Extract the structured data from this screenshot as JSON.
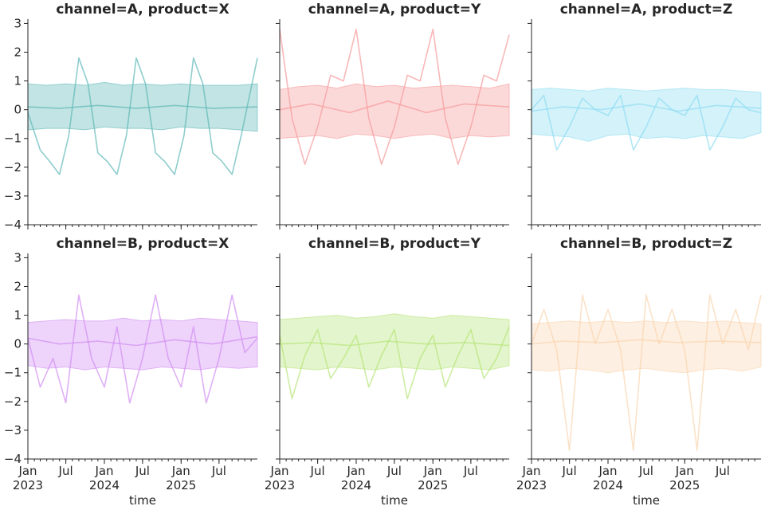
{
  "chart_data": {
    "type": "line",
    "layout": {
      "rows": 2,
      "cols": 3,
      "sharex": true,
      "sharey": true
    },
    "ylim": [
      -4,
      3.15
    ],
    "yticks": [
      3,
      2,
      1,
      0,
      -1,
      -2,
      -3,
      -4
    ],
    "ytick_labels": [
      "3",
      "2",
      "1",
      "0",
      "−1",
      "−2",
      "−3",
      "−4"
    ],
    "xlim": [
      "2023-01-01",
      "2025-12-31"
    ],
    "xticks": [
      {
        "date": "2023-01-01",
        "label": "Jan",
        "label2": "2023"
      },
      {
        "date": "2023-07-01",
        "label": "Jul",
        "label2": ""
      },
      {
        "date": "2024-01-01",
        "label": "Jan",
        "label2": "2024"
      },
      {
        "date": "2024-07-01",
        "label": "Jul",
        "label2": ""
      },
      {
        "date": "2025-01-01",
        "label": "Jan",
        "label2": "2025"
      },
      {
        "date": "2025-07-01",
        "label": "Jul",
        "label2": ""
      }
    ],
    "xlabel": "time",
    "ylabel": "",
    "grid": false,
    "panels": [
      {
        "title": "channel=A, product=X",
        "color": "#5FB8B8",
        "series": [
          {
            "kind": "band",
            "x": [
              "2023-01-01",
              "2023-04-01",
              "2023-07-01",
              "2023-10-01",
              "2024-01-01",
              "2024-04-01",
              "2024-07-01",
              "2024-10-01",
              "2025-01-01",
              "2025-04-01",
              "2025-07-01",
              "2025-10-01",
              "2025-12-31"
            ],
            "upper": [
              0.9,
              0.85,
              0.9,
              0.85,
              0.95,
              0.85,
              0.9,
              0.85,
              0.9,
              0.85,
              0.85,
              0.85,
              0.9
            ],
            "lower": [
              -0.7,
              -0.65,
              -0.65,
              -0.7,
              -0.6,
              -0.65,
              -0.65,
              -0.7,
              -0.6,
              -0.65,
              -0.65,
              -0.7,
              -0.75
            ]
          },
          {
            "kind": "line",
            "x": [
              "2023-01-01",
              "2023-03-01",
              "2023-04-15",
              "2023-06-01",
              "2023-07-15",
              "2023-09-01",
              "2023-10-15",
              "2023-12-01",
              "2024-01-15",
              "2024-03-01",
              "2024-04-15",
              "2024-06-01",
              "2024-07-15",
              "2024-09-01",
              "2024-10-15",
              "2024-12-01",
              "2025-01-15",
              "2025-03-01",
              "2025-04-15",
              "2025-06-01",
              "2025-07-15",
              "2025-09-01",
              "2025-10-15",
              "2025-12-31"
            ],
            "y": [
              -0.1,
              -1.4,
              -1.8,
              -2.25,
              -0.9,
              1.8,
              0.9,
              -1.5,
              -1.8,
              -2.25,
              -0.9,
              1.8,
              0.9,
              -1.5,
              -1.8,
              -2.25,
              -0.9,
              1.8,
              0.9,
              -1.5,
              -1.8,
              -2.25,
              -0.9,
              1.8
            ]
          },
          {
            "kind": "line",
            "x": [
              "2023-01-01",
              "2023-06-01",
              "2023-12-01",
              "2024-06-01",
              "2024-12-01",
              "2025-06-01",
              "2025-12-31"
            ],
            "y": [
              0.1,
              0.05,
              0.15,
              0.05,
              0.15,
              0.05,
              0.1
            ]
          }
        ]
      },
      {
        "title": "channel=A, product=Y",
        "color": "#F79A9A",
        "series": [
          {
            "kind": "band",
            "x": [
              "2023-01-01",
              "2023-04-01",
              "2023-07-01",
              "2023-10-01",
              "2024-01-01",
              "2024-04-01",
              "2024-07-01",
              "2024-10-01",
              "2025-01-01",
              "2025-04-01",
              "2025-07-01",
              "2025-10-01",
              "2025-12-31"
            ],
            "upper": [
              0.7,
              0.8,
              0.85,
              0.75,
              0.9,
              0.8,
              0.85,
              0.75,
              0.8,
              0.85,
              0.8,
              0.75,
              0.9
            ],
            "lower": [
              -1.0,
              -0.95,
              -0.9,
              -1.0,
              -0.85,
              -0.9,
              -1.0,
              -0.9,
              -0.85,
              -1.0,
              -0.9,
              -0.95,
              -0.9
            ]
          },
          {
            "kind": "line",
            "x": [
              "2023-01-01",
              "2023-03-01",
              "2023-05-01",
              "2023-07-01",
              "2023-09-01",
              "2023-11-01",
              "2024-01-01",
              "2024-03-01",
              "2024-05-01",
              "2024-07-01",
              "2024-09-01",
              "2024-11-01",
              "2025-01-01",
              "2025-03-01",
              "2025-05-01",
              "2025-07-01",
              "2025-09-01",
              "2025-11-01",
              "2025-12-31"
            ],
            "y": [
              2.8,
              -0.3,
              -1.9,
              -0.6,
              1.2,
              1.0,
              2.8,
              -0.3,
              -1.9,
              -0.6,
              1.2,
              1.0,
              2.8,
              -0.3,
              -1.9,
              -0.6,
              1.2,
              1.0,
              2.6
            ]
          },
          {
            "kind": "line",
            "x": [
              "2023-01-01",
              "2023-06-01",
              "2023-12-01",
              "2024-06-01",
              "2024-12-01",
              "2025-06-01",
              "2025-12-31"
            ],
            "y": [
              0.0,
              0.2,
              -0.1,
              0.3,
              -0.1,
              0.2,
              0.1
            ]
          }
        ]
      },
      {
        "title": "channel=A, product=Z",
        "color": "#8EDDF2",
        "series": [
          {
            "kind": "band",
            "x": [
              "2023-01-01",
              "2023-04-01",
              "2023-07-01",
              "2023-10-01",
              "2024-01-01",
              "2024-04-01",
              "2024-07-01",
              "2024-10-01",
              "2025-01-01",
              "2025-04-01",
              "2025-07-01",
              "2025-10-01",
              "2025-12-31"
            ],
            "upper": [
              0.7,
              0.75,
              0.7,
              0.65,
              0.75,
              0.7,
              0.65,
              0.7,
              0.75,
              0.7,
              0.7,
              0.65,
              0.6
            ],
            "lower": [
              -0.85,
              -0.9,
              -0.95,
              -1.1,
              -0.9,
              -0.85,
              -1.0,
              -0.95,
              -1.0,
              -0.9,
              -0.95,
              -1.0,
              -0.8
            ]
          },
          {
            "kind": "line",
            "x": [
              "2023-01-01",
              "2023-03-01",
              "2023-05-01",
              "2023-07-01",
              "2023-09-01",
              "2023-11-01",
              "2024-01-01",
              "2024-03-01",
              "2024-05-01",
              "2024-07-01",
              "2024-09-01",
              "2024-11-01",
              "2025-01-01",
              "2025-03-01",
              "2025-05-01",
              "2025-07-01",
              "2025-09-01",
              "2025-11-01",
              "2025-12-31"
            ],
            "y": [
              0.0,
              0.5,
              -1.4,
              -0.6,
              0.4,
              0.0,
              -0.2,
              0.5,
              -1.4,
              -0.6,
              0.4,
              0.0,
              -0.2,
              0.5,
              -1.4,
              -0.6,
              0.4,
              0.0,
              -0.1
            ]
          },
          {
            "kind": "line",
            "x": [
              "2023-01-01",
              "2023-06-01",
              "2023-12-01",
              "2024-06-01",
              "2024-12-01",
              "2025-06-01",
              "2025-12-31"
            ],
            "y": [
              -0.05,
              0.1,
              0.0,
              0.2,
              -0.05,
              0.15,
              0.05
            ]
          }
        ]
      },
      {
        "title": "channel=B, product=X",
        "color": "#D18EF2",
        "series": [
          {
            "kind": "band",
            "x": [
              "2023-01-01",
              "2023-04-01",
              "2023-07-01",
              "2023-10-01",
              "2024-01-01",
              "2024-04-01",
              "2024-07-01",
              "2024-10-01",
              "2025-01-01",
              "2025-04-01",
              "2025-07-01",
              "2025-10-01",
              "2025-12-31"
            ],
            "upper": [
              0.75,
              0.8,
              0.85,
              0.8,
              0.8,
              0.9,
              0.8,
              0.85,
              0.8,
              0.9,
              0.85,
              0.8,
              0.75
            ],
            "lower": [
              -0.75,
              -0.85,
              -0.8,
              -0.9,
              -0.8,
              -0.85,
              -0.9,
              -0.8,
              -0.85,
              -0.9,
              -0.8,
              -0.85,
              -0.8
            ]
          },
          {
            "kind": "line",
            "x": [
              "2023-01-01",
              "2023-03-01",
              "2023-05-01",
              "2023-07-01",
              "2023-09-01",
              "2023-11-01",
              "2024-01-01",
              "2024-03-01",
              "2024-05-01",
              "2024-07-01",
              "2024-09-01",
              "2024-11-01",
              "2025-01-01",
              "2025-03-01",
              "2025-05-01",
              "2025-07-01",
              "2025-09-01",
              "2025-11-01",
              "2025-12-31"
            ],
            "y": [
              0.2,
              -1.5,
              -0.5,
              -2.05,
              1.7,
              -0.5,
              -1.5,
              0.6,
              -2.05,
              -0.5,
              1.7,
              -0.5,
              -1.5,
              0.6,
              -2.05,
              -0.5,
              1.7,
              -0.3,
              0.2
            ]
          },
          {
            "kind": "line",
            "x": [
              "2023-01-01",
              "2023-06-01",
              "2023-12-01",
              "2024-06-01",
              "2024-12-01",
              "2025-06-01",
              "2025-12-31"
            ],
            "y": [
              0.2,
              0.0,
              0.1,
              -0.05,
              0.15,
              0.0,
              0.25
            ]
          }
        ]
      },
      {
        "title": "channel=B, product=Y",
        "color": "#B6E57A",
        "series": [
          {
            "kind": "band",
            "x": [
              "2023-01-01",
              "2023-04-01",
              "2023-07-01",
              "2023-10-01",
              "2024-01-01",
              "2024-04-01",
              "2024-07-01",
              "2024-10-01",
              "2025-01-01",
              "2025-04-01",
              "2025-07-01",
              "2025-10-01",
              "2025-12-31"
            ],
            "upper": [
              0.85,
              0.9,
              0.95,
              1.0,
              0.9,
              0.95,
              1.05,
              0.95,
              0.9,
              1.0,
              0.95,
              0.9,
              0.85
            ],
            "lower": [
              -0.8,
              -0.85,
              -0.9,
              -0.8,
              -0.85,
              -0.9,
              -0.8,
              -0.85,
              -0.9,
              -0.8,
              -0.85,
              -0.9,
              -0.75
            ]
          },
          {
            "kind": "line",
            "x": [
              "2023-01-01",
              "2023-03-01",
              "2023-05-01",
              "2023-07-01",
              "2023-09-01",
              "2023-11-01",
              "2024-01-01",
              "2024-03-01",
              "2024-05-01",
              "2024-07-01",
              "2024-09-01",
              "2024-11-01",
              "2025-01-01",
              "2025-03-01",
              "2025-05-01",
              "2025-07-01",
              "2025-09-01",
              "2025-11-01",
              "2025-12-31"
            ],
            "y": [
              0.3,
              -1.9,
              -0.4,
              0.5,
              -1.2,
              -0.5,
              0.3,
              -1.5,
              -0.4,
              0.5,
              -1.9,
              -0.5,
              0.3,
              -1.5,
              -0.4,
              0.5,
              -1.2,
              -0.5,
              0.6
            ]
          },
          {
            "kind": "line",
            "x": [
              "2023-01-01",
              "2023-06-01",
              "2023-12-01",
              "2024-06-01",
              "2024-12-01",
              "2025-06-01",
              "2025-12-31"
            ],
            "y": [
              0.0,
              0.05,
              -0.05,
              0.1,
              0.0,
              0.05,
              -0.05
            ]
          }
        ]
      },
      {
        "title": "channel=B, product=Z",
        "color": "#FAD6B0",
        "series": [
          {
            "kind": "band",
            "x": [
              "2023-01-01",
              "2023-04-01",
              "2023-07-01",
              "2023-10-01",
              "2024-01-01",
              "2024-04-01",
              "2024-07-01",
              "2024-10-01",
              "2025-01-01",
              "2025-04-01",
              "2025-07-01",
              "2025-10-01",
              "2025-12-31"
            ],
            "upper": [
              0.7,
              0.75,
              0.8,
              0.75,
              0.8,
              0.75,
              0.8,
              0.75,
              0.8,
              0.75,
              0.8,
              0.75,
              0.7
            ],
            "lower": [
              -0.9,
              -0.95,
              -0.85,
              -0.9,
              -1.0,
              -0.9,
              -0.85,
              -0.95,
              -1.0,
              -0.9,
              -0.85,
              -0.95,
              -0.8
            ]
          },
          {
            "kind": "line",
            "x": [
              "2023-01-01",
              "2023-03-01",
              "2023-05-01",
              "2023-07-01",
              "2023-09-01",
              "2023-11-01",
              "2024-01-01",
              "2024-03-01",
              "2024-05-01",
              "2024-07-01",
              "2024-09-01",
              "2024-11-01",
              "2025-01-01",
              "2025-03-01",
              "2025-05-01",
              "2025-07-01",
              "2025-09-01",
              "2025-11-01",
              "2025-12-31"
            ],
            "y": [
              0.0,
              1.2,
              -0.2,
              -3.7,
              1.7,
              0.0,
              1.2,
              -0.2,
              -3.7,
              1.7,
              0.0,
              1.2,
              -0.2,
              -3.7,
              1.7,
              0.0,
              1.2,
              -0.2,
              1.7
            ]
          },
          {
            "kind": "line",
            "x": [
              "2023-01-01",
              "2023-06-01",
              "2023-12-01",
              "2024-06-01",
              "2024-12-01",
              "2025-06-01",
              "2025-12-31"
            ],
            "y": [
              0.0,
              0.1,
              0.05,
              0.15,
              0.05,
              0.1,
              0.05
            ]
          }
        ]
      }
    ]
  }
}
